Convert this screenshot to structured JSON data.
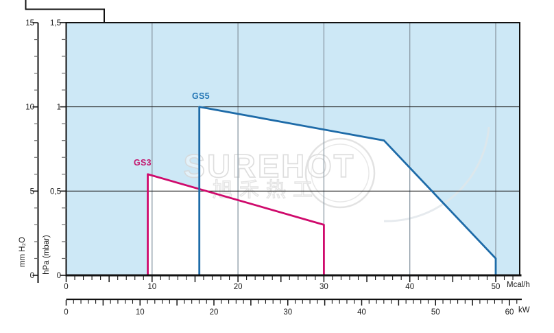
{
  "series_labels": {
    "gs3": "GS3",
    "gs5": "GS5"
  },
  "watermark": {
    "line1": "SUREHOT",
    "line2": "旭禾热工"
  },
  "colors": {
    "plot_bg": "#cde8f6",
    "field_fill": "#ffffff",
    "gs3_line": "#cf0a6c",
    "gs3_label": "#c2186e",
    "gs5_line": "#1e6ba8",
    "gs5_label": "#2577b5",
    "grid_vertical": "#8a99a4",
    "grid_horizontal": "#222222",
    "axis": "#111111",
    "minor_tick": "#6e6e6e",
    "tick_text": "#1a1a1a",
    "watermark_stroke": "#d7d7d7"
  },
  "chart_data": {
    "type": "area",
    "title": "",
    "xlabel": "Mcal/h",
    "xlabel_secondary": "kW",
    "ylabel": "hPa (mbar)",
    "ylabel_secondary": "mm H₂O",
    "x_axes": [
      {
        "id": "mcal",
        "unit": "Mcal/h",
        "ticks_labeled": [
          0,
          10,
          20,
          30,
          40,
          50
        ],
        "minor_step": 1,
        "major_step": 5,
        "range": [
          0,
          52.8
        ]
      },
      {
        "id": "kw",
        "unit": "kW",
        "ticks_labeled": [
          0,
          10,
          20,
          30,
          40,
          50,
          60
        ],
        "minor_step": 1,
        "major_step": 5,
        "range": [
          0,
          61.6
        ]
      }
    ],
    "y_axes": [
      {
        "id": "mm",
        "label": "mm H₂O",
        "ticks_labeled": [
          0,
          5,
          10,
          15
        ],
        "minor_step": 1,
        "major_step": 5,
        "range": [
          0,
          15
        ]
      },
      {
        "id": "hpa",
        "label": "hPa (mbar)",
        "ticks": [
          {
            "v": 0,
            "t": "0"
          },
          {
            "v": 0.5,
            "t": "0,5"
          },
          {
            "v": 1,
            "t": "1"
          },
          {
            "v": 1.5,
            "t": "1,5"
          }
        ],
        "minor_step": 0.1,
        "major_step": 0.5,
        "range": [
          0,
          1.5
        ]
      }
    ],
    "gridlines": {
      "vertical_mcal": [
        10,
        20,
        30,
        40,
        50
      ],
      "horizontal_hpa": [
        0.5,
        1.0
      ]
    },
    "series": [
      {
        "id": "gs3",
        "name": "GS3",
        "color": "#cf0a6c",
        "points_x_mcal_y_hpa": [
          [
            9.5,
            0
          ],
          [
            9.5,
            0.6
          ],
          [
            30,
            0.3
          ],
          [
            30,
            0
          ]
        ]
      },
      {
        "id": "gs5",
        "name": "GS5",
        "color": "#1e6ba8",
        "points_x_mcal_y_hpa": [
          [
            15.5,
            0
          ],
          [
            15.5,
            1.0
          ],
          [
            37,
            0.8
          ],
          [
            50,
            0.1
          ],
          [
            50,
            0
          ]
        ]
      }
    ]
  }
}
